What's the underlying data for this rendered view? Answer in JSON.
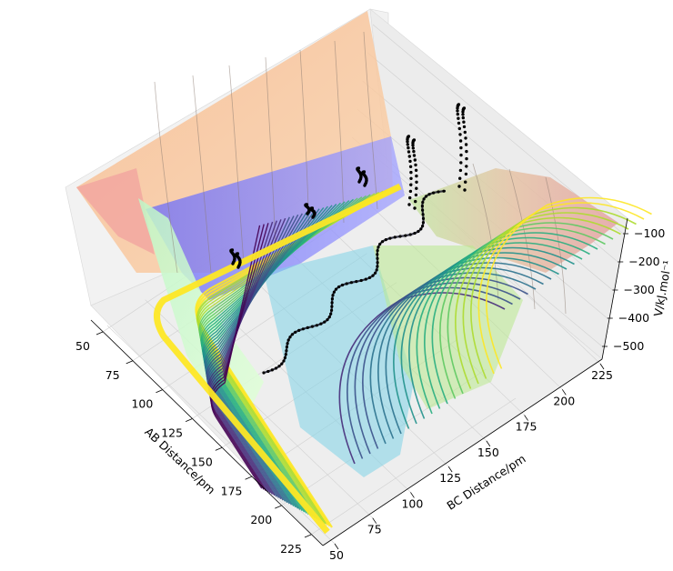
{
  "chart_data": {
    "type": "surface3d",
    "title": "",
    "xlabel": "AB Distance/pm",
    "ylabel": "BC Distance/pm",
    "zlabel": "V/kJ.mol⁻¹",
    "xticks": [
      "50",
      "75",
      "100",
      "125",
      "150",
      "175",
      "200",
      "225"
    ],
    "yticks": [
      "50",
      "75",
      "100",
      "125",
      "150",
      "175",
      "200",
      "225"
    ],
    "zticks": [
      "−100",
      "−200",
      "−300",
      "−400",
      "−500"
    ],
    "xlim": [
      50,
      240
    ],
    "ylim": [
      50,
      240
    ],
    "zlim": [
      -540,
      -80
    ],
    "surface_colormap": "jet",
    "contour_colormap": "viridis",
    "trajectory_color": "#000000",
    "grid": true,
    "legend": "none"
  }
}
